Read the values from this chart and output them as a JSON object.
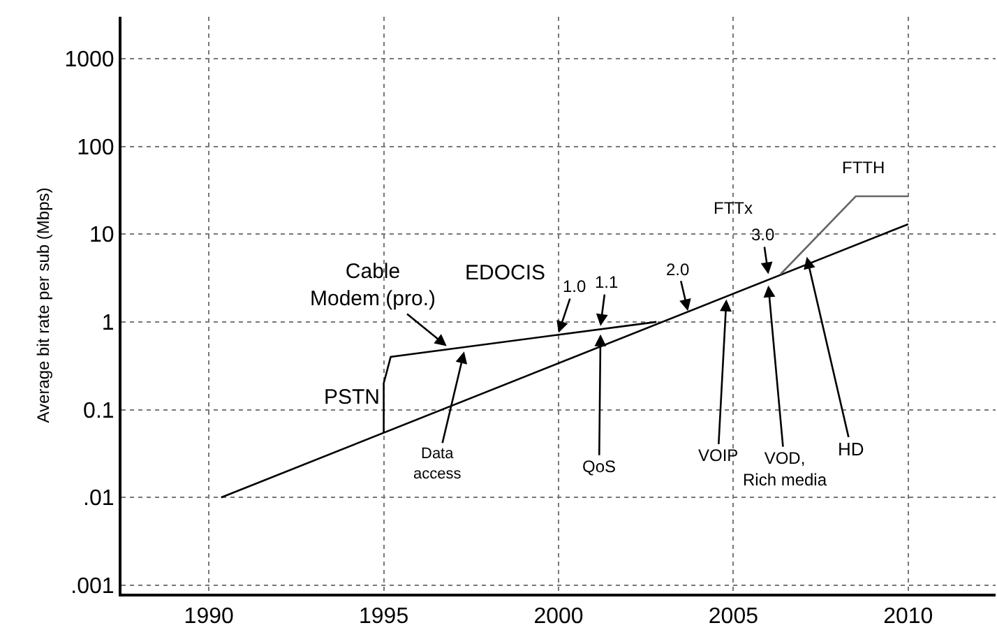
{
  "chart_data": {
    "type": "line",
    "ylabel": "Average bit rate per sub (Mbps)",
    "log": "y",
    "grid": true,
    "marker": "none",
    "line_style": "solid",
    "xlim": [
      1987.5,
      2012.5
    ],
    "xticks": [
      1990,
      1995,
      2000,
      2005,
      2010
    ],
    "ylim": [
      0.0008,
      3000
    ],
    "yticks": [
      1000,
      100,
      10,
      1,
      {
        "value": 0.1,
        "label": "0.1"
      },
      {
        "value": 0.01,
        "label": ".01"
      },
      {
        "value": 0.001,
        "label": ".001"
      }
    ],
    "series": [
      {
        "color": "#000000",
        "x": [
          1990.35,
          2010
        ],
        "values": [
          0.01,
          13
        ]
      },
      {
        "color": "#000000",
        "x": [
          1995,
          1995,
          1995.2,
          2002.8
        ],
        "values": [
          0.055,
          0.2,
          0.4,
          1.0
        ]
      },
      {
        "color": "#666666",
        "x": [
          2006.35,
          2008.5,
          2010
        ],
        "values": [
          3.5,
          27,
          27
        ]
      }
    ],
    "annotations": [
      {
        "text": "Cable\nModem (pro.)",
        "x": 1996.8,
        "y": 0.53
      },
      {
        "text": "Data\naccess",
        "x": 1997.3,
        "y": 0.46
      },
      {
        "text": "1.0",
        "x": 2000.0,
        "y": 0.75
      },
      {
        "text": "1.1",
        "x": 2001.2,
        "y": 0.9
      },
      {
        "text": "2.0",
        "x": 2003.7,
        "y": 1.33
      },
      {
        "text": "3.0",
        "x": 2006.0,
        "y": 3.5
      },
      {
        "text": "QoS",
        "x": 2001.2,
        "y": 0.72
      },
      {
        "text": "VOIP",
        "x": 2004.8,
        "y": 1.8
      },
      {
        "text": "VOD,\nRich media",
        "x": 2006.0,
        "y": 2.6
      },
      {
        "text": "HD",
        "x": 2007.1,
        "y": 5.5
      },
      "PSTN",
      "EDOCIS",
      "FTTx",
      "FTTH"
    ]
  }
}
